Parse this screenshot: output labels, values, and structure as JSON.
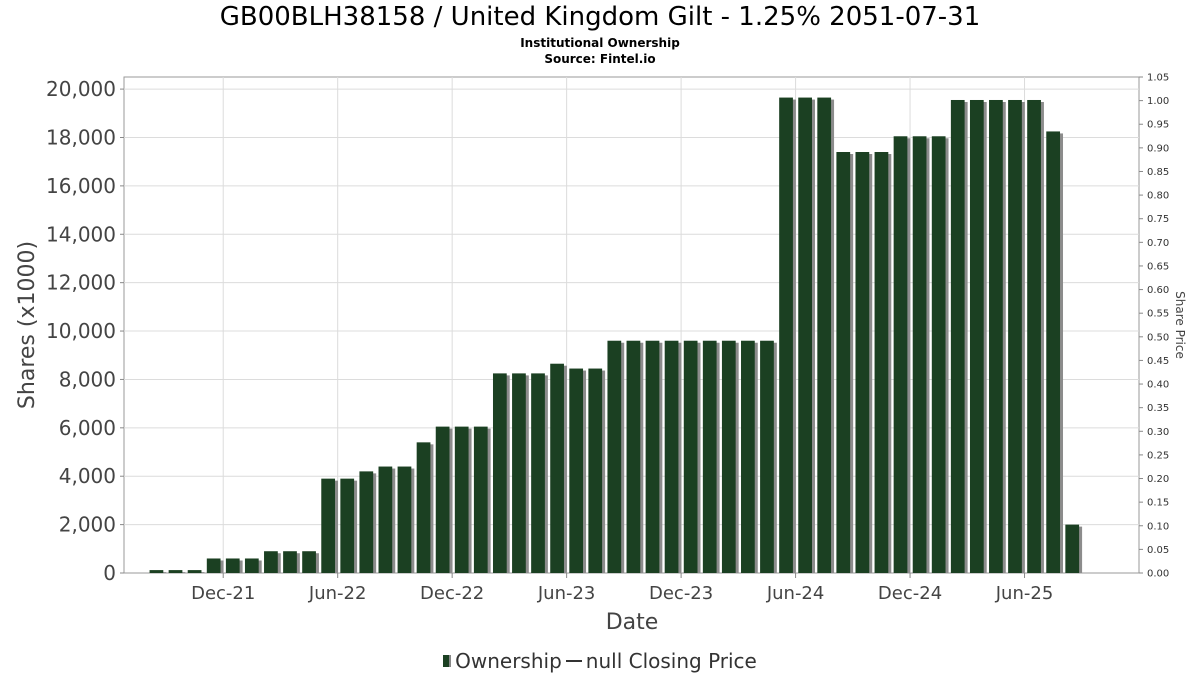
{
  "title": "GB00BLH38158 / United Kingdom Gilt - 1.25% 2051-07-31",
  "subtitle1": "Institutional Ownership",
  "subtitle2": "Source: Fintel.io",
  "legend": {
    "ownership_label": "Ownership",
    "price_label": "null Closing Price"
  },
  "colors": {
    "bar": "#1b4022",
    "bar_shadow": "#8c8c8c",
    "grid": "#dcdcdc"
  },
  "chart_data": {
    "type": "bar",
    "title": "GB00BLH38158 / United Kingdom Gilt - 1.25% 2051-07-31",
    "xlabel": "Date",
    "ylabel": "Shares (x1000)",
    "y2label": "Share Price",
    "ylim": [
      0,
      20500
    ],
    "y2lim": [
      0,
      1.05
    ],
    "yticks": [
      0,
      2000,
      4000,
      6000,
      8000,
      10000,
      12000,
      14000,
      16000,
      18000,
      20000
    ],
    "yticklabels": [
      "0",
      "2,000",
      "4,000",
      "6,000",
      "8,000",
      "10,000",
      "12,000",
      "14,000",
      "16,000",
      "18,000",
      "20,000"
    ],
    "y2ticklabels": [
      "0.00",
      "0.05",
      "0.10",
      "0.15",
      "0.20",
      "0.25",
      "0.30",
      "0.35",
      "0.40",
      "0.45",
      "0.50",
      "0.55",
      "0.60",
      "0.65",
      "0.70",
      "0.75",
      "0.80",
      "0.85",
      "0.90",
      "0.95",
      "1.00",
      "1.05"
    ],
    "xticks": [
      {
        "label": "Dec-21",
        "at": 3.5
      },
      {
        "label": "Jun-22",
        "at": 9.5
      },
      {
        "label": "Dec-22",
        "at": 15.5
      },
      {
        "label": "Jun-23",
        "at": 21.5
      },
      {
        "label": "Dec-23",
        "at": 27.5
      },
      {
        "label": "Jun-24",
        "at": 33.5
      },
      {
        "label": "Dec-24",
        "at": 39.5
      },
      {
        "label": "Jun-25",
        "at": 45.5
      }
    ],
    "x_range": [
      -1.7,
      51.5
    ],
    "grid": true,
    "legend_position": "bottom",
    "series": [
      {
        "name": "Ownership",
        "values": [
          120,
          120,
          120,
          600,
          600,
          600,
          900,
          900,
          900,
          3900,
          3900,
          4200,
          4400,
          4400,
          5400,
          6050,
          6050,
          6050,
          8250,
          8250,
          8250,
          8650,
          8450,
          8450,
          9600,
          9600,
          9600,
          9600,
          9600,
          9600,
          9600,
          9600,
          9600,
          19650,
          19650,
          19650,
          17400,
          17400,
          17400,
          18050,
          18050,
          18050,
          19550,
          19550,
          19550,
          19550,
          19550,
          18250,
          2000
        ]
      },
      {
        "name": "null Closing Price",
        "values": []
      }
    ]
  }
}
